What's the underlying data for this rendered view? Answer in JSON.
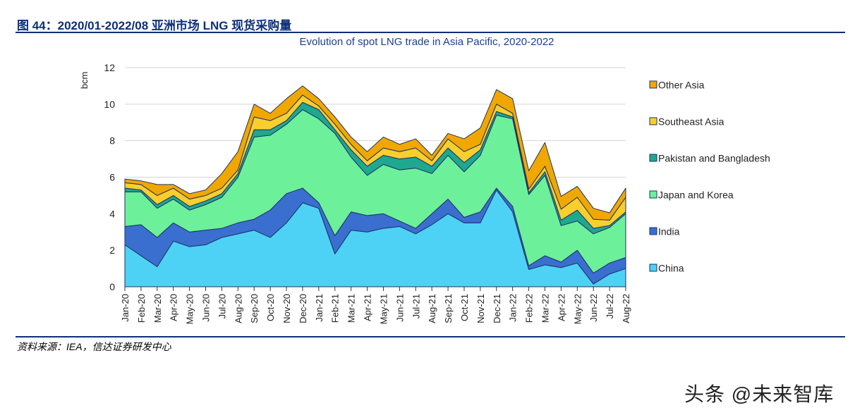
{
  "figure_title": "图 44：2020/01-2022/08 亚洲市场 LNG 现货采购量",
  "source_note": "资料来源：IEA，信达证券研发中心",
  "watermark": "头条 @未来智库",
  "chart_data": {
    "type": "area",
    "stacked": true,
    "title": "Evolution of spot LNG trade in Asia Pacific, 2020-2022",
    "xlabel": "",
    "ylabel": "bcm",
    "ylim": [
      0,
      12
    ],
    "yticks": [
      0,
      2,
      4,
      6,
      8,
      10,
      12
    ],
    "grid": true,
    "legend_position": "right",
    "categories": [
      "Jan-20",
      "Feb-20",
      "Mar-20",
      "Apr-20",
      "May-20",
      "Jun-20",
      "Jul-20",
      "Aug-20",
      "Sep-20",
      "Oct-20",
      "Nov-20",
      "Dec-20",
      "Jan-21",
      "Feb-21",
      "Mar-21",
      "Apr-21",
      "May-21",
      "Jun-21",
      "Jul-21",
      "Aug-21",
      "Sep-21",
      "Oct-21",
      "Nov-21",
      "Dec-21",
      "Jan-22",
      "Feb-22",
      "Mar-22",
      "Apr-22",
      "May-22",
      "Jun-22",
      "Jul-22",
      "Aug-22"
    ],
    "series": [
      {
        "name": "China",
        "color": "#4dd2f5",
        "values": [
          2.3,
          1.7,
          1.1,
          2.5,
          2.2,
          2.3,
          2.7,
          2.9,
          3.1,
          2.7,
          3.5,
          4.6,
          4.3,
          1.8,
          3.1,
          3.0,
          3.2,
          3.3,
          2.9,
          3.4,
          4.0,
          3.5,
          3.5,
          5.3,
          4.1,
          0.95,
          1.2,
          1.05,
          1.3,
          0.15,
          0.7,
          1.0
        ]
      },
      {
        "name": "India",
        "color": "#3a6fcf",
        "values": [
          1.0,
          1.7,
          1.6,
          1.0,
          0.8,
          0.8,
          0.5,
          0.6,
          0.6,
          1.5,
          1.6,
          0.8,
          0.3,
          1.0,
          1.0,
          0.9,
          0.8,
          0.3,
          0.3,
          0.6,
          0.8,
          0.3,
          0.6,
          0.1,
          0.3,
          0.2,
          0.5,
          0.3,
          0.7,
          0.6,
          0.6,
          0.6
        ]
      },
      {
        "name": "Japan and Korea",
        "color": "#6df09a",
        "values": [
          1.9,
          1.8,
          1.6,
          1.3,
          1.2,
          1.4,
          1.7,
          2.5,
          4.5,
          4.1,
          3.8,
          4.3,
          4.6,
          5.6,
          3.0,
          2.2,
          2.7,
          2.8,
          3.3,
          2.2,
          2.4,
          2.5,
          3.1,
          4.0,
          4.8,
          3.9,
          4.4,
          2.0,
          1.6,
          2.15,
          1.95,
          2.4
        ]
      },
      {
        "name": "Pakistan and Bangladesh",
        "color": "#1fa890",
        "values": [
          0.2,
          0.1,
          0.2,
          0.2,
          0.2,
          0.2,
          0.2,
          0.2,
          0.4,
          0.3,
          0.2,
          0.4,
          0.5,
          0.2,
          0.4,
          0.5,
          0.5,
          0.6,
          0.6,
          0.4,
          0.4,
          0.5,
          0.3,
          0.2,
          0.1,
          0.1,
          0.2,
          0.3,
          0.6,
          0.3,
          0.1,
          0.1
        ]
      },
      {
        "name": "Southeast Asia",
        "color": "#f9cf2e",
        "values": [
          0.3,
          0.3,
          0.5,
          0.4,
          0.4,
          0.3,
          0.3,
          0.2,
          0.7,
          0.5,
          0.4,
          0.4,
          0.2,
          0.3,
          0.3,
          0.3,
          0.4,
          0.4,
          0.5,
          0.3,
          0.5,
          0.6,
          0.3,
          0.4,
          0.2,
          0.2,
          0.3,
          0.6,
          0.7,
          0.5,
          0.3,
          0.8
        ]
      },
      {
        "name": "Other Asia",
        "color": "#f0a800",
        "values": [
          0.2,
          0.2,
          0.6,
          0.2,
          0.3,
          0.3,
          0.8,
          1.0,
          0.7,
          0.4,
          0.8,
          0.5,
          0.4,
          0.4,
          0.4,
          0.5,
          0.6,
          0.4,
          0.5,
          0.3,
          0.3,
          0.7,
          0.9,
          0.8,
          0.8,
          1.0,
          1.3,
          0.7,
          0.6,
          0.6,
          0.4,
          0.5
        ]
      }
    ],
    "legend_order": [
      "Other Asia",
      "Southeast Asia",
      "Pakistan and Bangladesh",
      "Japan and Korea",
      "India",
      "China"
    ]
  }
}
